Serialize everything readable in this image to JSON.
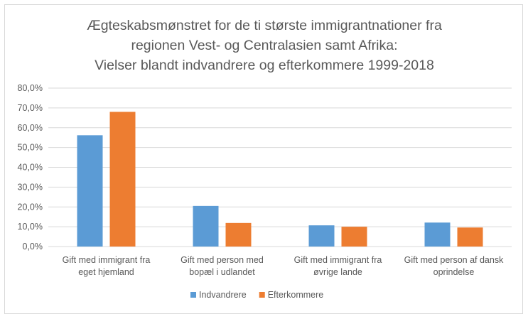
{
  "chart_data": {
    "type": "bar",
    "title": [
      "Ægteskabsmønstret for de ti største immigrantnationer fra",
      "regionen Vest- og Centralasien samt Afrika:",
      "Vielser blandt indvandrere og efterkommere 1999-2018"
    ],
    "categories": [
      [
        "Gift med immigrant fra",
        "eget hjemland"
      ],
      [
        "Gift med person med",
        "bopæl i udlandet"
      ],
      [
        "Gift med immigrant fra",
        "øvrige lande"
      ],
      [
        "Gift med person af dansk",
        "oprindelse"
      ]
    ],
    "series": [
      {
        "name": "Indvandrere",
        "color": "#5b9bd5",
        "values": [
          56.2,
          20.5,
          10.7,
          12.1
        ]
      },
      {
        "name": "Efterkommere",
        "color": "#ed7d31",
        "values": [
          68.0,
          11.9,
          10.0,
          9.6
        ]
      }
    ],
    "ylim": [
      0,
      80
    ],
    "yticks": [
      "0,0%",
      "10,0%",
      "20,0%",
      "30,0%",
      "40,0%",
      "50,0%",
      "60,0%",
      "70,0%",
      "80,0%"
    ],
    "grid": true,
    "legend": "bottom"
  }
}
